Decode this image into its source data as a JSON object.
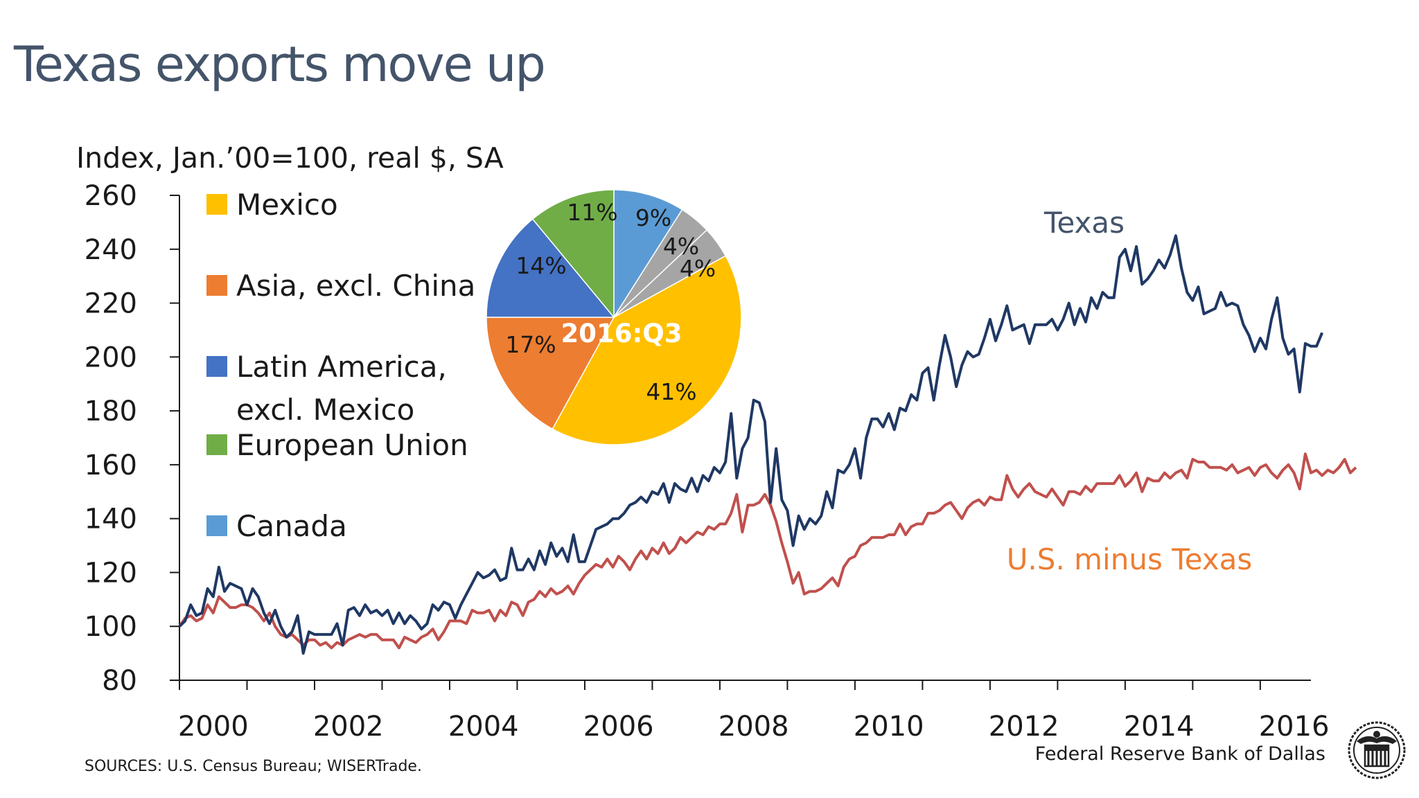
{
  "slide": {
    "title": "Texas exports move up",
    "sources": "SOURCES: U.S. Census Bureau; WISERTrade.",
    "footer": "Federal Reserve Bank of Dallas"
  },
  "colors": {
    "texas": "#1f3864",
    "us_minus_texas": "#c0504d",
    "texas_label": "#44546a",
    "us_label": "#ed7d31",
    "mexico": "#ffc000",
    "asia": "#ed7d31",
    "latam": "#4472c4",
    "eu": "#70ad47",
    "canada": "#5b9bd5",
    "other": "#a5a5a5"
  },
  "chart_data": [
    {
      "type": "line",
      "ylabel": "Index, Jan.’00=100, real $, SA",
      "ylim": [
        80,
        260
      ],
      "yticks": [
        80,
        100,
        120,
        140,
        160,
        180,
        200,
        220,
        240,
        260
      ],
      "xlim": [
        2000.0,
        2016.75
      ],
      "xticks": [
        "2000",
        "2002",
        "2004",
        "2006",
        "2008",
        "2010",
        "2012",
        "2014",
        "2016"
      ],
      "x_start": "2000-01",
      "frequency": "monthly",
      "series": [
        {
          "name": "Texas",
          "values": [
            100,
            102,
            108,
            104,
            105,
            114,
            111,
            122,
            113,
            116,
            115,
            114,
            108,
            114,
            111,
            105,
            101,
            106,
            100,
            96,
            98,
            104,
            90,
            98,
            97,
            97,
            97,
            97,
            101,
            93,
            106,
            107,
            104,
            108,
            105,
            106,
            104,
            106,
            101,
            105,
            101,
            104,
            102,
            99,
            101,
            108,
            106,
            109,
            108,
            103,
            108,
            112,
            116,
            120,
            118,
            119,
            121,
            117,
            118,
            129,
            121,
            121,
            125,
            121,
            128,
            123,
            131,
            126,
            129,
            124,
            134,
            124,
            124,
            130,
            136,
            137,
            138,
            140,
            140,
            142,
            145,
            146,
            148,
            146,
            150,
            149,
            153,
            146,
            153,
            151,
            150,
            155,
            150,
            156,
            154,
            159,
            157,
            161,
            179,
            155,
            166,
            170,
            184,
            183,
            176,
            146,
            166,
            147,
            143,
            130,
            141,
            136,
            140,
            138,
            141,
            150,
            144,
            158,
            157,
            160,
            166,
            155,
            170,
            177,
            177,
            174,
            179,
            173,
            181,
            180,
            186,
            184,
            194,
            196,
            184,
            197,
            208,
            200,
            189,
            197,
            202,
            200,
            201,
            207,
            214,
            206,
            212,
            219,
            210,
            211,
            212,
            205,
            212,
            212,
            212,
            214,
            210,
            214,
            220,
            212,
            218,
            213,
            222,
            218,
            224,
            222,
            222,
            237,
            240,
            232,
            241,
            227,
            229,
            232,
            236,
            233,
            238,
            245,
            233,
            224,
            221,
            226,
            216,
            217,
            218,
            224,
            219,
            220,
            219,
            212,
            208,
            202,
            207,
            203,
            214,
            222,
            207,
            201,
            203,
            187,
            205,
            204,
            204,
            209
          ]
        },
        {
          "name": "U.S. minus Texas",
          "values": [
            100,
            103,
            104,
            102,
            103,
            108,
            105,
            111,
            109,
            107,
            107,
            108,
            108,
            107,
            105,
            102,
            105,
            100,
            97,
            96,
            97,
            95,
            93,
            95,
            95,
            93,
            94,
            92,
            94,
            93,
            95,
            96,
            97,
            96,
            97,
            97,
            95,
            95,
            95,
            92,
            96,
            95,
            94,
            96,
            97,
            99,
            95,
            98,
            102,
            102,
            102,
            101,
            106,
            105,
            105,
            106,
            102,
            106,
            104,
            109,
            108,
            104,
            109,
            110,
            113,
            111,
            114,
            112,
            113,
            115,
            112,
            116,
            119,
            121,
            123,
            122,
            125,
            122,
            126,
            124,
            121,
            125,
            128,
            125,
            129,
            127,
            131,
            127,
            129,
            133,
            131,
            133,
            135,
            134,
            137,
            136,
            138,
            138,
            142,
            149,
            135,
            145,
            145,
            146,
            149,
            145,
            139,
            131,
            124,
            116,
            120,
            112,
            113,
            113,
            114,
            116,
            118,
            115,
            122,
            125,
            126,
            130,
            131,
            133,
            133,
            133,
            134,
            134,
            138,
            134,
            137,
            138,
            138,
            142,
            142,
            143,
            145,
            146,
            143,
            140,
            144,
            146,
            147,
            145,
            148,
            147,
            147,
            156,
            151,
            148,
            151,
            153,
            150,
            149,
            148,
            151,
            148,
            145,
            150,
            150,
            149,
            152,
            150,
            153,
            153,
            153,
            153,
            156,
            152,
            154,
            157,
            150,
            155,
            154,
            154,
            157,
            155,
            157,
            158,
            155,
            162,
            161,
            161,
            159,
            159,
            159,
            158,
            160,
            157,
            158,
            159,
            156,
            159,
            160,
            157,
            155,
            158,
            160,
            157,
            151,
            164,
            157,
            158,
            156,
            158,
            157,
            159,
            162,
            157,
            159
          ]
        }
      ],
      "annotations": {
        "texas_label": "Texas",
        "us_label": "U.S. minus Texas"
      },
      "legend": {
        "placement": "top-left",
        "entries": [
          {
            "label": "Mexico",
            "color": "#ffc000"
          },
          {
            "label": "Asia, excl. China",
            "color": "#ed7d31"
          },
          {
            "label": "Latin America,",
            "label2": "excl. Mexico",
            "color": "#4472c4"
          },
          {
            "label": "European Union",
            "color": "#70ad47"
          },
          {
            "label": "Canada",
            "color": "#5b9bd5"
          }
        ]
      }
    },
    {
      "type": "pie",
      "title": "2016:Q3",
      "start_angle_deg": 0,
      "slices": [
        {
          "label": "9%",
          "value": 9,
          "color": "#5b9bd5"
        },
        {
          "label": "4%",
          "value": 4,
          "color": "#a5a5a5"
        },
        {
          "label": "4%",
          "value": 4,
          "color": "#a5a5a5"
        },
        {
          "label": "41%",
          "value": 41,
          "color": "#ffc000"
        },
        {
          "label": "17%",
          "value": 17,
          "color": "#ed7d31"
        },
        {
          "label": "14%",
          "value": 14,
          "color": "#4472c4"
        },
        {
          "label": "11%",
          "value": 11,
          "color": "#70ad47"
        }
      ]
    }
  ]
}
